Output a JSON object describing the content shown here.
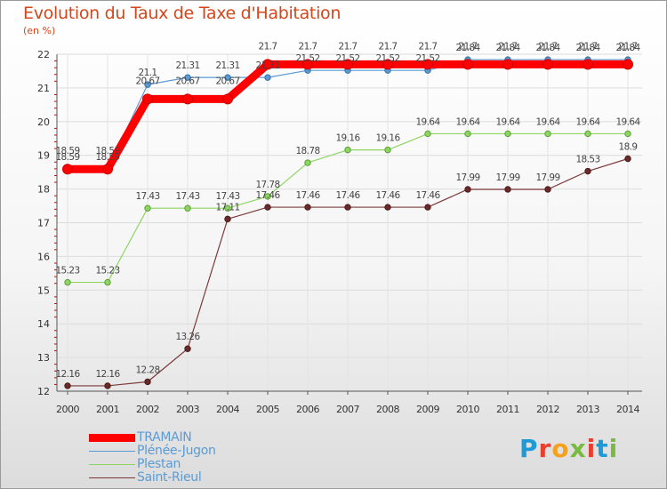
{
  "title": "Evolution du Taux de Taxe d'Habitation",
  "subtitle": "(en %)",
  "logo": {
    "text": "Proxiti",
    "colors": [
      "#1e9bd7",
      "#e83e2f",
      "#f4a11d",
      "#7ab943",
      "#e83e2f",
      "#1e9bd7",
      "#7ab943"
    ]
  },
  "chart_data": {
    "type": "line",
    "title": "Evolution du Taux de Taxe d'Habitation",
    "ylabel": "(en %)",
    "xlabel": "",
    "x": [
      "2000",
      "2001",
      "2002",
      "2003",
      "2004",
      "2005",
      "2006",
      "2007",
      "2008",
      "2009",
      "2010",
      "2011",
      "2012",
      "2013",
      "2014"
    ],
    "ylim": [
      12,
      22
    ],
    "yticks": [
      "12",
      "13",
      "14",
      "15",
      "16",
      "17",
      "18",
      "19",
      "20",
      "21",
      "22"
    ],
    "grid": true,
    "legend_position": "bottom-left",
    "series": [
      {
        "name": "TRAMAIN",
        "color": "#ff0000",
        "values": [
          18.59,
          18.59,
          20.67,
          20.67,
          20.67,
          21.7,
          21.7,
          21.7,
          21.7,
          21.7,
          21.7,
          21.7,
          21.7,
          21.7,
          21.7
        ],
        "labels": [
          "18.59",
          "18.59",
          "20.67",
          "20.67",
          "20.67",
          "21.7",
          "21.7",
          "21.7",
          "21.7",
          "21.7",
          "21.7",
          "21.7",
          "21.7",
          "21.7",
          "21.7"
        ]
      },
      {
        "name": "Plénée-Jugon",
        "color": "#5b9bd5",
        "values": [
          18.59,
          18.59,
          21.1,
          21.31,
          21.31,
          21.31,
          21.52,
          21.52,
          21.52,
          21.52,
          21.84,
          21.84,
          21.84,
          21.84,
          21.84
        ],
        "labels": [
          "18.59",
          "18.59",
          "21.1",
          "21.31",
          "21.31",
          "21.31",
          "21.52",
          "21.52",
          "21.52",
          "21.52",
          "21.84",
          "21.84",
          "21.84",
          "21.84",
          "21.84"
        ]
      },
      {
        "name": "Plestan",
        "color": "#8ed563",
        "values": [
          15.23,
          15.23,
          17.43,
          17.43,
          17.43,
          17.78,
          18.78,
          19.16,
          19.16,
          19.64,
          19.64,
          19.64,
          19.64,
          19.64,
          19.64
        ],
        "labels": [
          "15.23",
          "15.23",
          "17.43",
          "17.43",
          "17.43",
          "17.78",
          "18.78",
          "19.16",
          "19.16",
          "19.64",
          "19.64",
          "19.64",
          "19.64",
          "19.64",
          "19.64"
        ]
      },
      {
        "name": "Saint-Rieul",
        "color": "#7b3b3b",
        "values": [
          12.16,
          12.16,
          12.28,
          13.26,
          17.11,
          17.46,
          17.46,
          17.46,
          17.46,
          17.46,
          17.99,
          17.99,
          17.99,
          18.53,
          18.9
        ],
        "labels": [
          "12.16",
          "12.16",
          "12.28",
          "13.26",
          "17.11",
          "17.46",
          "17.46",
          "17.46",
          "17.46",
          "17.46",
          "17.99",
          "17.99",
          "17.99",
          "18.53",
          "18.9"
        ]
      }
    ]
  }
}
